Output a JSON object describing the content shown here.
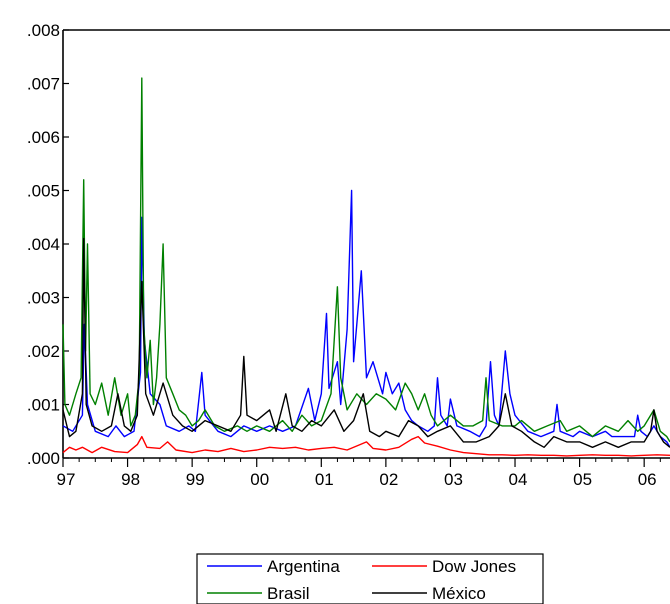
{
  "chart_data": {
    "type": "line",
    "title": "",
    "xlabel": "",
    "ylabel": "",
    "x_tick_labels": [
      "97",
      "98",
      "99",
      "00",
      "01",
      "02",
      "03",
      "04",
      "05",
      "06"
    ],
    "y_tick_labels": [
      ".000",
      ".001",
      ".002",
      ".003",
      ".004",
      ".005",
      ".006",
      ".007",
      ".008"
    ],
    "xlim": [
      1997.0,
      2006.4
    ],
    "ylim": [
      0,
      0.008
    ],
    "grid": false,
    "legend_position": "bottom-center",
    "series": [
      {
        "name": "Argentina",
        "color": "#0000ff",
        "points": [
          [
            1997.0,
            0.0006
          ],
          [
            1997.15,
            0.0005
          ],
          [
            1997.3,
            0.0008
          ],
          [
            1997.33,
            0.0025
          ],
          [
            1997.38,
            0.001
          ],
          [
            1997.5,
            0.0005
          ],
          [
            1997.7,
            0.0004
          ],
          [
            1997.82,
            0.0006
          ],
          [
            1997.95,
            0.0004
          ],
          [
            1998.1,
            0.0005
          ],
          [
            1998.2,
            0.0016
          ],
          [
            1998.22,
            0.0045
          ],
          [
            1998.26,
            0.0022
          ],
          [
            1998.35,
            0.0012
          ],
          [
            1998.5,
            0.001
          ],
          [
            1998.6,
            0.0006
          ],
          [
            1998.8,
            0.0005
          ],
          [
            1998.95,
            0.0006
          ],
          [
            1999.05,
            0.0005
          ],
          [
            1999.15,
            0.0016
          ],
          [
            1999.2,
            0.0008
          ],
          [
            1999.4,
            0.0005
          ],
          [
            1999.6,
            0.0004
          ],
          [
            1999.8,
            0.0006
          ],
          [
            2000.0,
            0.0005
          ],
          [
            2000.2,
            0.0006
          ],
          [
            2000.4,
            0.0005
          ],
          [
            2000.6,
            0.0006
          ],
          [
            2000.8,
            0.0013
          ],
          [
            2000.9,
            0.0007
          ],
          [
            2001.0,
            0.0012
          ],
          [
            2001.08,
            0.0027
          ],
          [
            2001.12,
            0.0013
          ],
          [
            2001.25,
            0.0018
          ],
          [
            2001.3,
            0.001
          ],
          [
            2001.4,
            0.0024
          ],
          [
            2001.47,
            0.005
          ],
          [
            2001.5,
            0.0018
          ],
          [
            2001.55,
            0.0025
          ],
          [
            2001.62,
            0.0035
          ],
          [
            2001.7,
            0.0015
          ],
          [
            2001.8,
            0.0018
          ],
          [
            2001.95,
            0.0012
          ],
          [
            2002.0,
            0.0016
          ],
          [
            2002.1,
            0.0012
          ],
          [
            2002.2,
            0.0014
          ],
          [
            2002.3,
            0.0009
          ],
          [
            2002.4,
            0.0007
          ],
          [
            2002.5,
            0.0006
          ],
          [
            2002.65,
            0.0005
          ],
          [
            2002.75,
            0.0006
          ],
          [
            2002.8,
            0.0015
          ],
          [
            2002.85,
            0.0008
          ],
          [
            2002.95,
            0.0006
          ],
          [
            2003.0,
            0.0011
          ],
          [
            2003.1,
            0.0006
          ],
          [
            2003.3,
            0.0005
          ],
          [
            2003.45,
            0.0004
          ],
          [
            2003.55,
            0.0006
          ],
          [
            2003.62,
            0.0018
          ],
          [
            2003.68,
            0.0008
          ],
          [
            2003.75,
            0.0006
          ],
          [
            2003.85,
            0.002
          ],
          [
            2003.92,
            0.0012
          ],
          [
            2004.0,
            0.0008
          ],
          [
            2004.2,
            0.0005
          ],
          [
            2004.4,
            0.0004
          ],
          [
            2004.6,
            0.0005
          ],
          [
            2004.65,
            0.001
          ],
          [
            2004.7,
            0.0005
          ],
          [
            2004.9,
            0.0004
          ],
          [
            2005.0,
            0.0005
          ],
          [
            2005.2,
            0.0004
          ],
          [
            2005.4,
            0.0005
          ],
          [
            2005.5,
            0.0004
          ],
          [
            2005.7,
            0.0004
          ],
          [
            2005.85,
            0.0004
          ],
          [
            2005.9,
            0.0008
          ],
          [
            2005.95,
            0.0005
          ],
          [
            2006.05,
            0.0004
          ],
          [
            2006.15,
            0.0006
          ],
          [
            2006.25,
            0.0004
          ],
          [
            2006.35,
            0.0003
          ],
          [
            2006.4,
            0.0002
          ]
        ]
      },
      {
        "name": "Dow Jones",
        "color": "#ff0000",
        "points": [
          [
            1997.0,
            0.0001
          ],
          [
            1997.1,
            0.0002
          ],
          [
            1997.2,
            0.00015
          ],
          [
            1997.3,
            0.0002
          ],
          [
            1997.45,
            0.0001
          ],
          [
            1997.6,
            0.0002
          ],
          [
            1997.8,
            0.00012
          ],
          [
            1998.0,
            0.0001
          ],
          [
            1998.15,
            0.00025
          ],
          [
            1998.22,
            0.0004
          ],
          [
            1998.3,
            0.0002
          ],
          [
            1998.5,
            0.00018
          ],
          [
            1998.62,
            0.0003
          ],
          [
            1998.75,
            0.00015
          ],
          [
            1999.0,
            0.0001
          ],
          [
            1999.2,
            0.00015
          ],
          [
            1999.4,
            0.00012
          ],
          [
            1999.6,
            0.00018
          ],
          [
            1999.8,
            0.00012
          ],
          [
            2000.0,
            0.00015
          ],
          [
            2000.2,
            0.0002
          ],
          [
            2000.4,
            0.00018
          ],
          [
            2000.6,
            0.0002
          ],
          [
            2000.8,
            0.00015
          ],
          [
            2001.0,
            0.00018
          ],
          [
            2001.2,
            0.0002
          ],
          [
            2001.4,
            0.00015
          ],
          [
            2001.6,
            0.00025
          ],
          [
            2001.7,
            0.0003
          ],
          [
            2001.8,
            0.00018
          ],
          [
            2002.0,
            0.00015
          ],
          [
            2002.2,
            0.0002
          ],
          [
            2002.4,
            0.00035
          ],
          [
            2002.5,
            0.0004
          ],
          [
            2002.6,
            0.00028
          ],
          [
            2002.8,
            0.00022
          ],
          [
            2003.0,
            0.00015
          ],
          [
            2003.2,
            0.0001
          ],
          [
            2003.4,
            8e-05
          ],
          [
            2003.6,
            6e-05
          ],
          [
            2003.8,
            6e-05
          ],
          [
            2004.0,
            5e-05
          ],
          [
            2004.2,
            6e-05
          ],
          [
            2004.4,
            5e-05
          ],
          [
            2004.6,
            5e-05
          ],
          [
            2004.8,
            4e-05
          ],
          [
            2005.0,
            5e-05
          ],
          [
            2005.2,
            6e-05
          ],
          [
            2005.4,
            5e-05
          ],
          [
            2005.6,
            5e-05
          ],
          [
            2005.8,
            4e-05
          ],
          [
            2006.0,
            5e-05
          ],
          [
            2006.2,
            6e-05
          ],
          [
            2006.4,
            5e-05
          ]
        ]
      },
      {
        "name": "Brasil",
        "color": "#008000",
        "points": [
          [
            1997.0,
            0.0025
          ],
          [
            1997.03,
            0.001
          ],
          [
            1997.1,
            0.0008
          ],
          [
            1997.2,
            0.0012
          ],
          [
            1997.28,
            0.0015
          ],
          [
            1997.32,
            0.0052
          ],
          [
            1997.35,
            0.002
          ],
          [
            1997.38,
            0.004
          ],
          [
            1997.42,
            0.0012
          ],
          [
            1997.5,
            0.001
          ],
          [
            1997.6,
            0.0014
          ],
          [
            1997.7,
            0.0008
          ],
          [
            1997.8,
            0.0015
          ],
          [
            1997.9,
            0.0008
          ],
          [
            1998.0,
            0.0012
          ],
          [
            1998.05,
            0.0006
          ],
          [
            1998.12,
            0.0008
          ],
          [
            1998.18,
            0.0015
          ],
          [
            1998.22,
            0.0071
          ],
          [
            1998.25,
            0.0025
          ],
          [
            1998.3,
            0.0015
          ],
          [
            1998.35,
            0.0022
          ],
          [
            1998.4,
            0.001
          ],
          [
            1998.45,
            0.0015
          ],
          [
            1998.5,
            0.0025
          ],
          [
            1998.55,
            0.004
          ],
          [
            1998.6,
            0.0015
          ],
          [
            1998.7,
            0.0012
          ],
          [
            1998.8,
            0.0009
          ],
          [
            1998.9,
            0.0008
          ],
          [
            1999.0,
            0.0006
          ],
          [
            1999.1,
            0.0007
          ],
          [
            1999.2,
            0.0009
          ],
          [
            1999.35,
            0.0006
          ],
          [
            1999.5,
            0.0005
          ],
          [
            1999.7,
            0.0006
          ],
          [
            1999.85,
            0.0005
          ],
          [
            2000.0,
            0.0006
          ],
          [
            2000.2,
            0.0005
          ],
          [
            2000.4,
            0.0007
          ],
          [
            2000.55,
            0.0005
          ],
          [
            2000.7,
            0.0008
          ],
          [
            2000.85,
            0.0006
          ],
          [
            2001.0,
            0.0007
          ],
          [
            2001.15,
            0.0012
          ],
          [
            2001.25,
            0.0032
          ],
          [
            2001.3,
            0.0015
          ],
          [
            2001.4,
            0.0009
          ],
          [
            2001.55,
            0.0012
          ],
          [
            2001.7,
            0.001
          ],
          [
            2001.85,
            0.0012
          ],
          [
            2002.0,
            0.0011
          ],
          [
            2002.15,
            0.0009
          ],
          [
            2002.3,
            0.0014
          ],
          [
            2002.4,
            0.0012
          ],
          [
            2002.5,
            0.0009
          ],
          [
            2002.6,
            0.0012
          ],
          [
            2002.7,
            0.0008
          ],
          [
            2002.8,
            0.0006
          ],
          [
            2003.0,
            0.0008
          ],
          [
            2003.2,
            0.0006
          ],
          [
            2003.35,
            0.0006
          ],
          [
            2003.5,
            0.0007
          ],
          [
            2003.55,
            0.0015
          ],
          [
            2003.6,
            0.0007
          ],
          [
            2003.8,
            0.0006
          ],
          [
            2004.0,
            0.0006
          ],
          [
            2004.1,
            0.0007
          ],
          [
            2004.3,
            0.0005
          ],
          [
            2004.5,
            0.0006
          ],
          [
            2004.7,
            0.0007
          ],
          [
            2004.8,
            0.0005
          ],
          [
            2005.0,
            0.0006
          ],
          [
            2005.2,
            0.0004
          ],
          [
            2005.4,
            0.0006
          ],
          [
            2005.6,
            0.0005
          ],
          [
            2005.75,
            0.0007
          ],
          [
            2005.9,
            0.0005
          ],
          [
            2006.0,
            0.0006
          ],
          [
            2006.15,
            0.0009
          ],
          [
            2006.25,
            0.0005
          ],
          [
            2006.35,
            0.0004
          ],
          [
            2006.4,
            0.0003
          ]
        ]
      },
      {
        "name": "México",
        "color": "#000000",
        "points": [
          [
            1997.0,
            0.0009
          ],
          [
            1997.1,
            0.0004
          ],
          [
            1997.2,
            0.0005
          ],
          [
            1997.3,
            0.0012
          ],
          [
            1997.32,
            0.0041
          ],
          [
            1997.36,
            0.001
          ],
          [
            1997.45,
            0.0006
          ],
          [
            1997.6,
            0.0005
          ],
          [
            1997.75,
            0.0006
          ],
          [
            1997.85,
            0.0012
          ],
          [
            1997.95,
            0.0006
          ],
          [
            1998.05,
            0.0005
          ],
          [
            1998.15,
            0.0008
          ],
          [
            1998.22,
            0.0033
          ],
          [
            1998.28,
            0.0012
          ],
          [
            1998.4,
            0.0008
          ],
          [
            1998.55,
            0.0014
          ],
          [
            1998.7,
            0.0008
          ],
          [
            1998.85,
            0.0006
          ],
          [
            1999.0,
            0.0005
          ],
          [
            1999.2,
            0.0007
          ],
          [
            1999.4,
            0.0006
          ],
          [
            1999.6,
            0.0005
          ],
          [
            1999.75,
            0.0008
          ],
          [
            1999.8,
            0.0019
          ],
          [
            1999.85,
            0.0008
          ],
          [
            2000.0,
            0.0007
          ],
          [
            2000.2,
            0.0009
          ],
          [
            2000.3,
            0.0005
          ],
          [
            2000.45,
            0.0012
          ],
          [
            2000.55,
            0.0006
          ],
          [
            2000.7,
            0.0005
          ],
          [
            2000.85,
            0.0007
          ],
          [
            2001.0,
            0.0006
          ],
          [
            2001.2,
            0.0009
          ],
          [
            2001.35,
            0.0005
          ],
          [
            2001.5,
            0.0007
          ],
          [
            2001.65,
            0.0012
          ],
          [
            2001.75,
            0.0005
          ],
          [
            2001.9,
            0.0004
          ],
          [
            2002.0,
            0.0005
          ],
          [
            2002.2,
            0.0004
          ],
          [
            2002.35,
            0.0007
          ],
          [
            2002.5,
            0.0006
          ],
          [
            2002.65,
            0.0004
          ],
          [
            2002.8,
            0.0005
          ],
          [
            2003.0,
            0.0006
          ],
          [
            2003.2,
            0.0003
          ],
          [
            2003.4,
            0.0003
          ],
          [
            2003.6,
            0.0004
          ],
          [
            2003.75,
            0.0006
          ],
          [
            2003.85,
            0.0012
          ],
          [
            2003.95,
            0.0006
          ],
          [
            2004.1,
            0.0005
          ],
          [
            2004.3,
            0.0003
          ],
          [
            2004.45,
            0.0002
          ],
          [
            2004.6,
            0.0004
          ],
          [
            2004.8,
            0.0003
          ],
          [
            2005.0,
            0.0003
          ],
          [
            2005.2,
            0.0002
          ],
          [
            2005.4,
            0.0003
          ],
          [
            2005.6,
            0.0002
          ],
          [
            2005.8,
            0.0003
          ],
          [
            2006.0,
            0.0003
          ],
          [
            2006.1,
            0.0005
          ],
          [
            2006.15,
            0.0009
          ],
          [
            2006.2,
            0.0005
          ],
          [
            2006.3,
            0.0003
          ],
          [
            2006.4,
            0.0002
          ]
        ]
      }
    ]
  }
}
